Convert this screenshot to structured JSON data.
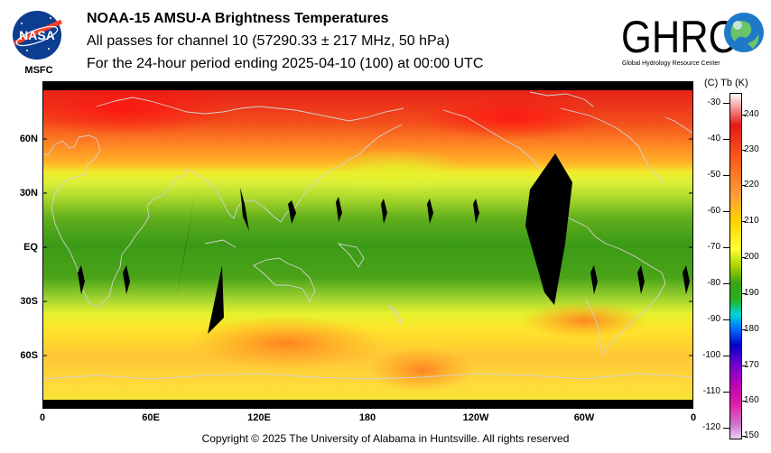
{
  "header": {
    "title": "NOAA-15 AMSU-A Brightness Temperatures",
    "subtitle": "All passes for channel 10 (57290.33 ± 217 MHz, 50 hPa)",
    "period": "For the 24-hour period ending 2025-04-10 (100) at 00:00 UTC"
  },
  "nasa_logo": {
    "wordmark": "NASA",
    "center": "MSFC"
  },
  "ghrc_logo": {
    "wordmark": "GHRC",
    "tagline": "Global Hydrology Resource Center"
  },
  "map": {
    "lat_labels": [
      "60N",
      "30N",
      "EQ",
      "30S",
      "60S"
    ],
    "lon_labels": [
      "0",
      "60E",
      "120E",
      "180",
      "120W",
      "60W",
      "0"
    ]
  },
  "colorbar": {
    "header": "(C)  Tb  (K)",
    "celsius": [
      "-30",
      "-40",
      "-50",
      "-60",
      "-70",
      "-80",
      "-90",
      "-100",
      "-110",
      "-120"
    ],
    "kelvin": [
      "240",
      "230",
      "220",
      "210",
      "200",
      "190",
      "180",
      "170",
      "160",
      "150"
    ]
  },
  "footer": {
    "copyright": "Copyright © 2025 The University of Alabama in Huntsville.  All rights reserved"
  },
  "colors": {
    "hot": "#e81818",
    "warm": "#ffd400",
    "mid": "#3aa014",
    "nodata": "#000000",
    "coast": "#c8c8c8"
  }
}
